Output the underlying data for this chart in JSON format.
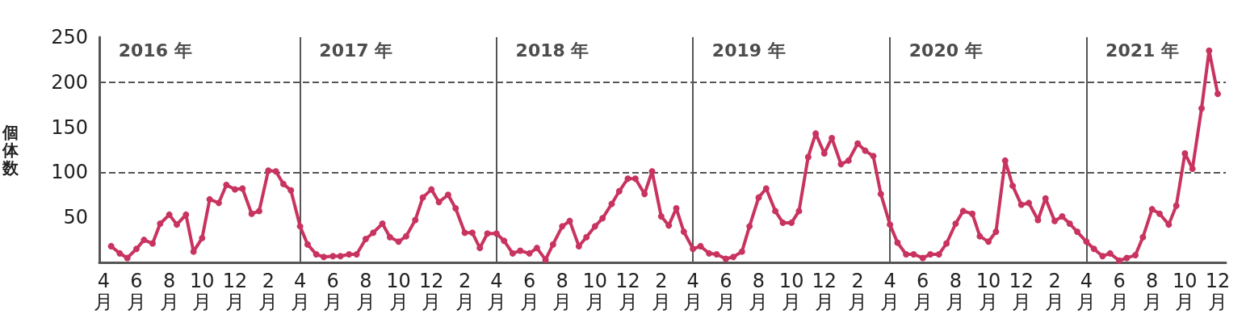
{
  "chart_data": {
    "type": "line",
    "ylabel": "個体数",
    "ylim": [
      0,
      250
    ],
    "yticks": [
      50,
      100,
      150,
      200,
      250
    ],
    "xlim": [
      "2016-03-24",
      "2021-12-16"
    ],
    "xticks": [
      {
        "value": "2016-04",
        "label": "4月"
      },
      {
        "value": "2016-06",
        "label": "6月"
      },
      {
        "value": "2016-08",
        "label": "8月"
      },
      {
        "value": "2016-10",
        "label": "10月"
      },
      {
        "value": "2016-12",
        "label": "12月"
      },
      {
        "value": "2017-02",
        "label": "2月"
      },
      {
        "value": "2017-04",
        "label": "4月"
      },
      {
        "value": "2017-06",
        "label": "6月"
      },
      {
        "value": "2017-08",
        "label": "8月"
      },
      {
        "value": "2017-10",
        "label": "10月"
      },
      {
        "value": "2017-12",
        "label": "12月"
      },
      {
        "value": "2018-02",
        "label": "2月"
      },
      {
        "value": "2018-04",
        "label": "4月"
      },
      {
        "value": "2018-06",
        "label": "6月"
      },
      {
        "value": "2018-08",
        "label": "8月"
      },
      {
        "value": "2018-10",
        "label": "10月"
      },
      {
        "value": "2018-12",
        "label": "12月"
      },
      {
        "value": "2019-02",
        "label": "2月"
      },
      {
        "value": "2019-04",
        "label": "4月"
      },
      {
        "value": "2019-06",
        "label": "6月"
      },
      {
        "value": "2019-08",
        "label": "8月"
      },
      {
        "value": "2019-10",
        "label": "10月"
      },
      {
        "value": "2019-12",
        "label": "12月"
      },
      {
        "value": "2020-02",
        "label": "2月"
      },
      {
        "value": "2020-04",
        "label": "4月"
      },
      {
        "value": "2020-06",
        "label": "6月"
      },
      {
        "value": "2020-08",
        "label": "8月"
      },
      {
        "value": "2020-10",
        "label": "10月"
      },
      {
        "value": "2020-12",
        "label": "12月"
      },
      {
        "value": "2021-02",
        "label": "2月"
      },
      {
        "value": "2021-04",
        "label": "4月"
      },
      {
        "value": "2021-06",
        "label": "6月"
      },
      {
        "value": "2021-08",
        "label": "8月"
      },
      {
        "value": "2021-10",
        "label": "10月"
      },
      {
        "value": "2021-12",
        "label": "12月"
      }
    ],
    "x": [
      "2016-04-15",
      "2016-05-01",
      "2016-05-15",
      "2016-06-01",
      "2016-06-15",
      "2016-07-01",
      "2016-07-15",
      "2016-08-01",
      "2016-08-15",
      "2016-09-01",
      "2016-09-15",
      "2016-10-01",
      "2016-10-15",
      "2016-11-01",
      "2016-11-15",
      "2016-12-01",
      "2016-12-15",
      "2017-01-01",
      "2017-01-15",
      "2017-02-01",
      "2017-02-15",
      "2017-03-01",
      "2017-03-15",
      "2017-04-01",
      "2017-04-15",
      "2017-05-01",
      "2017-05-15",
      "2017-06-01",
      "2017-06-15",
      "2017-07-01",
      "2017-07-15",
      "2017-08-01",
      "2017-08-15",
      "2017-09-01",
      "2017-09-15",
      "2017-10-01",
      "2017-10-15",
      "2017-11-01",
      "2017-11-15",
      "2017-12-01",
      "2017-12-15",
      "2018-01-01",
      "2018-01-15",
      "2018-02-01",
      "2018-02-15",
      "2018-03-01",
      "2018-03-15",
      "2018-04-01",
      "2018-04-15",
      "2018-05-01",
      "2018-05-15",
      "2018-06-01",
      "2018-06-15",
      "2018-07-01",
      "2018-07-15",
      "2018-08-01",
      "2018-08-15",
      "2018-09-01",
      "2018-09-15",
      "2018-10-01",
      "2018-10-15",
      "2018-11-01",
      "2018-11-15",
      "2018-12-01",
      "2018-12-15",
      "2019-01-01",
      "2019-01-15",
      "2019-02-01",
      "2019-02-15",
      "2019-03-01",
      "2019-03-15",
      "2019-04-01",
      "2019-04-15",
      "2019-05-01",
      "2019-05-15",
      "2019-06-01",
      "2019-06-15",
      "2019-07-01",
      "2019-07-15",
      "2019-08-01",
      "2019-08-15",
      "2019-09-01",
      "2019-09-15",
      "2019-10-01",
      "2019-10-15",
      "2019-11-01",
      "2019-11-15",
      "2019-12-01",
      "2019-12-15",
      "2020-01-01",
      "2020-01-15",
      "2020-02-01",
      "2020-02-15",
      "2020-03-01",
      "2020-03-15",
      "2020-04-01",
      "2020-04-15",
      "2020-05-01",
      "2020-05-15",
      "2020-06-01",
      "2020-06-15",
      "2020-07-01",
      "2020-07-15",
      "2020-08-01",
      "2020-08-15",
      "2020-09-01",
      "2020-09-15",
      "2020-10-01",
      "2020-10-15",
      "2020-11-01",
      "2020-11-15",
      "2020-12-01",
      "2020-12-15",
      "2021-01-01",
      "2021-01-15",
      "2021-02-01",
      "2021-02-15",
      "2021-03-01",
      "2021-03-15",
      "2021-04-01",
      "2021-04-15",
      "2021-05-01",
      "2021-05-15",
      "2021-06-01",
      "2021-06-15",
      "2021-07-01",
      "2021-07-15",
      "2021-08-01",
      "2021-08-15",
      "2021-09-01",
      "2021-09-15",
      "2021-10-01",
      "2021-10-15",
      "2021-11-01",
      "2021-11-15",
      "2021-12-01"
    ],
    "series": [
      {
        "color": "#c8335f",
        "values": [
          18,
          10,
          5,
          15,
          25,
          21,
          43,
          53,
          42,
          53,
          12,
          27,
          70,
          66,
          86,
          81,
          82,
          54,
          57,
          102,
          101,
          87,
          80,
          40,
          20,
          9,
          6,
          7,
          7,
          9,
          9,
          26,
          33,
          43,
          28,
          23,
          29,
          47,
          72,
          81,
          67,
          75,
          60,
          33,
          33,
          16,
          32,
          32,
          24,
          10,
          13,
          10,
          16,
          3,
          20,
          40,
          46,
          18,
          28,
          40,
          49,
          65,
          79,
          93,
          93,
          76,
          101,
          51,
          41,
          60,
          34,
          15,
          18,
          10,
          9,
          4,
          6,
          12,
          40,
          72,
          82,
          57,
          44,
          44,
          57,
          117,
          143,
          121,
          138,
          109,
          113,
          132,
          124,
          118,
          76,
          42,
          22,
          9,
          9,
          5,
          9,
          9,
          21,
          43,
          57,
          54,
          29,
          23,
          34,
          113,
          85,
          64,
          66,
          47,
          71,
          46,
          51,
          43,
          34,
          23,
          15,
          7,
          10,
          2,
          5,
          8,
          28,
          59,
          54,
          42,
          63,
          121,
          104,
          171,
          235,
          187
        ]
      }
    ],
    "marker": "circle",
    "line_style": "solid",
    "ref_lines": [
      {
        "axis": "x",
        "value": "2017-04",
        "color": "#555555",
        "line_style": "solid"
      },
      {
        "axis": "x",
        "value": "2018-04",
        "color": "#555555",
        "line_style": "solid"
      },
      {
        "axis": "x",
        "value": "2019-04",
        "color": "#555555",
        "line_style": "solid"
      },
      {
        "axis": "x",
        "value": "2020-04",
        "color": "#555555",
        "line_style": "solid"
      },
      {
        "axis": "x",
        "value": "2021-04",
        "color": "#555555",
        "line_style": "solid"
      },
      {
        "axis": "y",
        "value": 100,
        "color": "#555555",
        "line_style": "dashed"
      },
      {
        "axis": "y",
        "value": 200,
        "color": "#555555",
        "line_style": "dashed"
      }
    ],
    "annotations": [
      "2016 年",
      "2017 年",
      "2018 年",
      "2019 年",
      "2020 年",
      "2021 年"
    ]
  }
}
